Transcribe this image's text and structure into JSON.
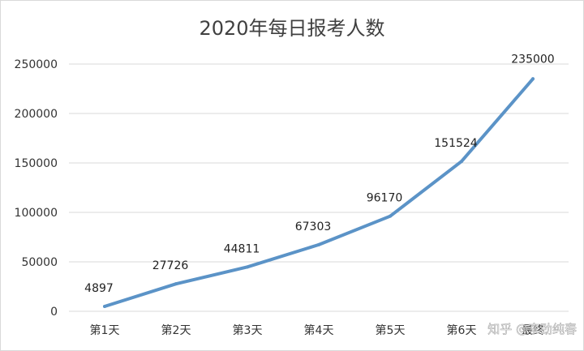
{
  "chart_data": {
    "type": "line",
    "title": "2020年每日报考人数",
    "categories": [
      "第1天",
      "第2天",
      "第3天",
      "第4天",
      "第5天",
      "第6天",
      "最终"
    ],
    "series": [
      {
        "values": [
          4897,
          27726,
          44811,
          67303,
          96170,
          151524,
          235000
        ]
      }
    ],
    "data_labels": [
      "4897",
      "27726",
      "44811",
      "67303",
      "96170",
      "151524",
      "235000"
    ],
    "ylim": [
      0,
      250000
    ],
    "y_ticks": [
      0,
      50000,
      100000,
      150000,
      200000,
      250000
    ],
    "grid": true,
    "legend": "none",
    "line_color": "#5b93c7",
    "grid_color": "#d9d9d9"
  },
  "watermark": {
    "text": "知乎 @李劲纯春"
  }
}
